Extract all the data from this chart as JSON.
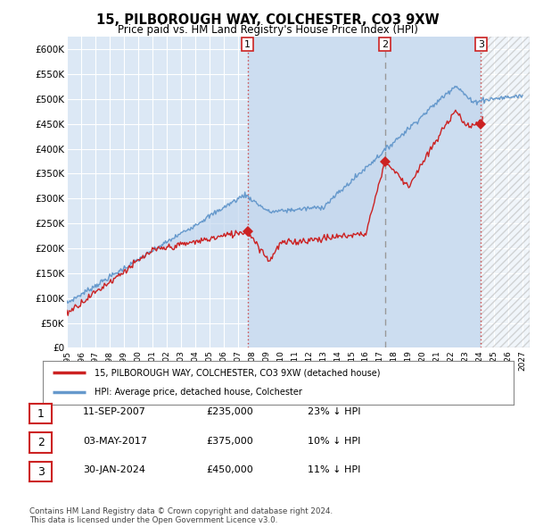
{
  "title": "15, PILBOROUGH WAY, COLCHESTER, CO3 9XW",
  "subtitle": "Price paid vs. HM Land Registry's House Price Index (HPI)",
  "ylim": [
    0,
    620000
  ],
  "yticks": [
    0,
    50000,
    100000,
    150000,
    200000,
    250000,
    300000,
    350000,
    400000,
    450000,
    500000,
    550000,
    600000
  ],
  "ytick_labels": [
    "£0",
    "£50K",
    "£100K",
    "£150K",
    "£200K",
    "£250K",
    "£300K",
    "£350K",
    "£400K",
    "£450K",
    "£500K",
    "£550K",
    "£600K"
  ],
  "xlim_start": 1995.0,
  "xlim_end": 2027.5,
  "plot_bg_color": "#dce8f5",
  "grid_color": "#ffffff",
  "hpi_line_color": "#6699cc",
  "price_line_color": "#cc2222",
  "fill_color": "#c5d8ee",
  "transactions": [
    {
      "label": "1",
      "date_num": 2007.69,
      "price": 235000,
      "vline_color": "#cc4444",
      "vline_style": "dotted"
    },
    {
      "label": "2",
      "date_num": 2017.34,
      "price": 375000,
      "vline_color": "#999999",
      "vline_style": "dashed"
    },
    {
      "label": "3",
      "date_num": 2024.08,
      "price": 450000,
      "vline_color": "#cc4444",
      "vline_style": "dotted"
    }
  ],
  "highlight_fill_start": 2007.69,
  "highlight_fill_end": 2024.08,
  "highlight_fill_color": "#ccddf0",
  "legend_house_label": "15, PILBOROUGH WAY, COLCHESTER, CO3 9XW (detached house)",
  "legend_hpi_label": "HPI: Average price, detached house, Colchester",
  "table_rows": [
    {
      "num": "1",
      "date": "11-SEP-2007",
      "price": "£235,000",
      "pct": "23% ↓ HPI"
    },
    {
      "num": "2",
      "date": "03-MAY-2017",
      "price": "£375,000",
      "pct": "10% ↓ HPI"
    },
    {
      "num": "3",
      "date": "30-JAN-2024",
      "price": "£450,000",
      "pct": "11% ↓ HPI"
    }
  ],
  "footer": "Contains HM Land Registry data © Crown copyright and database right 2024.\nThis data is licensed under the Open Government Licence v3.0.",
  "hatch_region_start": 2024.08,
  "hatch_region_end": 2027.5,
  "box_edge_color": "#cc2222"
}
